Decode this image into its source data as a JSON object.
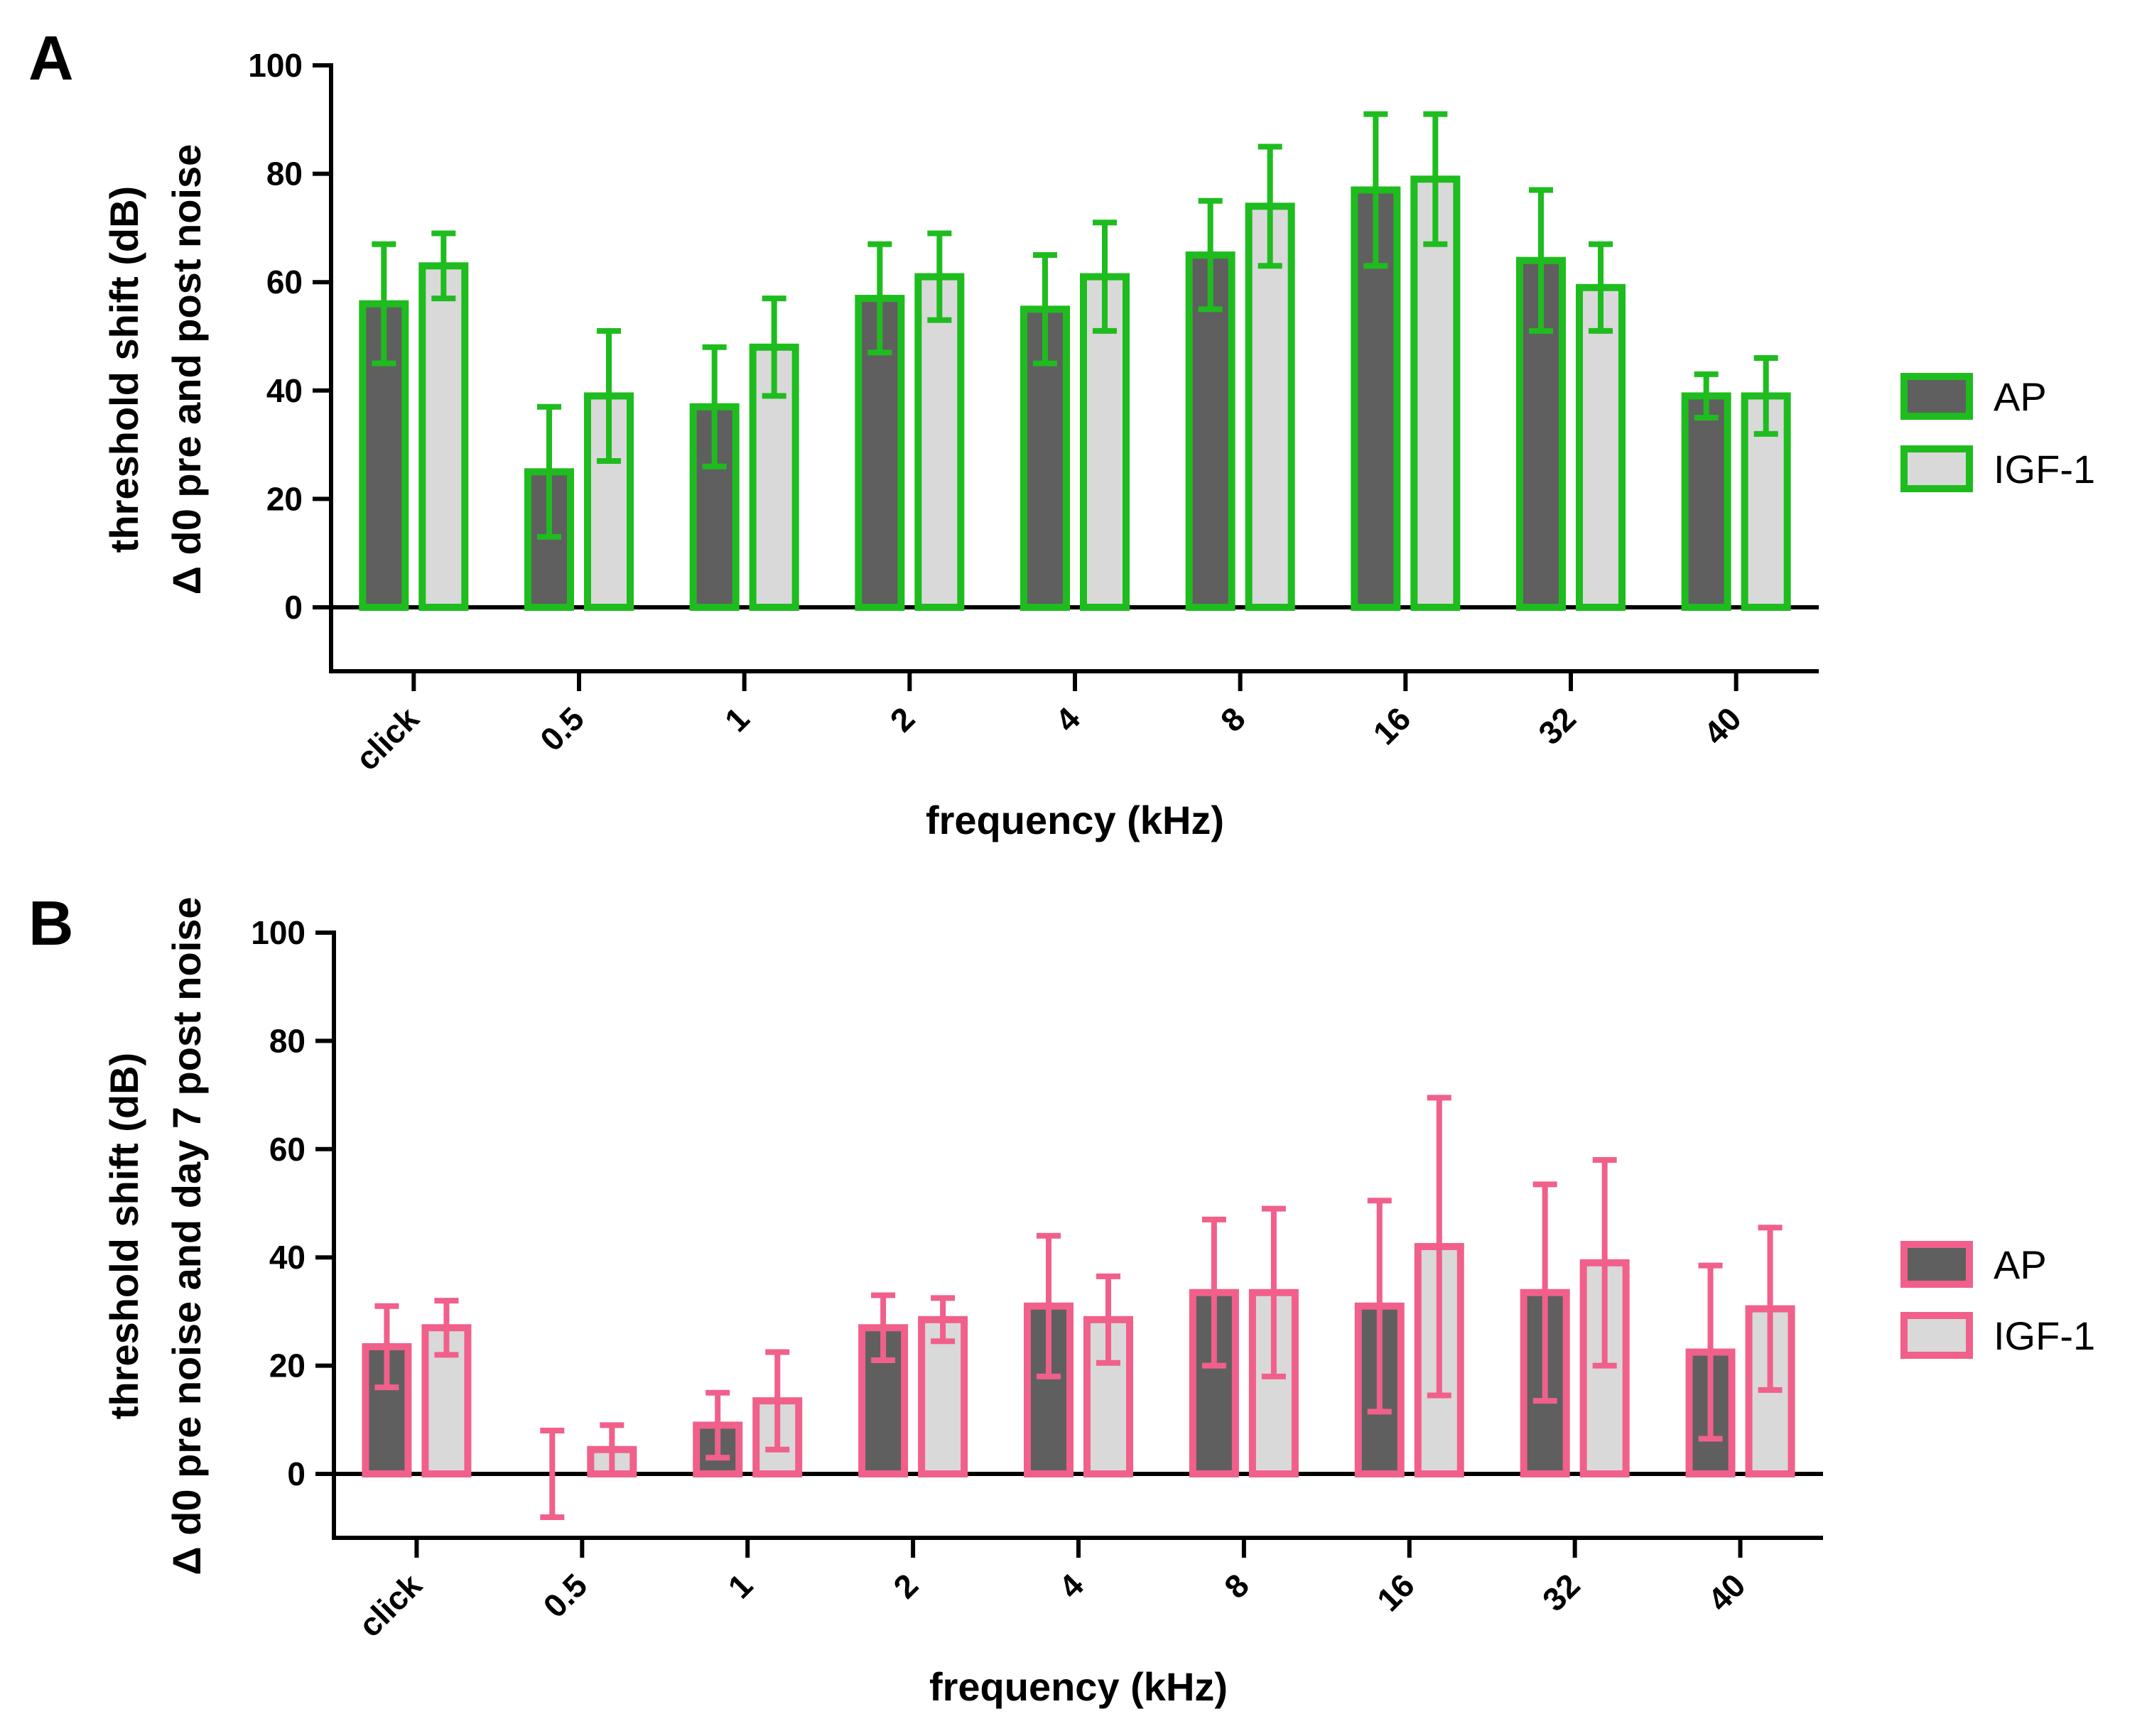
{
  "chart_data": [
    {
      "type": "bar",
      "panel_label": "A",
      "categories": [
        "click",
        "0.5",
        "1",
        "2",
        "4",
        "8",
        "16",
        "32",
        "40"
      ],
      "series": [
        {
          "name": "AP",
          "values": [
            56,
            25,
            37,
            57,
            55,
            65,
            77,
            64,
            39
          ],
          "errors": [
            11,
            12,
            11,
            10,
            10,
            10,
            14,
            13,
            4
          ],
          "fill": "#5f5f5f",
          "stroke": "#1ebc1e"
        },
        {
          "name": "IGF-1",
          "values": [
            63,
            39,
            48,
            61,
            61,
            74,
            79,
            59,
            39
          ],
          "errors": [
            6,
            12,
            9,
            8,
            10,
            11,
            12,
            8,
            7
          ],
          "fill": "#d9d9d9",
          "stroke": "#1ebc1e"
        }
      ],
      "ylabel_lines": [
        "threshold shift (dB)",
        "Δ d0 pre and post noise"
      ],
      "xlabel": "frequency (kHz)",
      "yticks": [
        0,
        20,
        40,
        60,
        80,
        100
      ],
      "ylim": [
        -12,
        100
      ],
      "legend": "right"
    },
    {
      "type": "bar",
      "panel_label": "B",
      "categories": [
        "click",
        "0.5",
        "1",
        "2",
        "4",
        "8",
        "16",
        "32",
        "40"
      ],
      "series": [
        {
          "name": "AP",
          "values": [
            23.5,
            0,
            9,
            27,
            31,
            33.5,
            31,
            33.5,
            22.5
          ],
          "errors": [
            7.5,
            8,
            6,
            6,
            13,
            13.5,
            19.5,
            20,
            16
          ],
          "fill": "#5f5f5f",
          "stroke": "#f0608a"
        },
        {
          "name": "IGF-1",
          "values": [
            27,
            4.5,
            13.5,
            28.5,
            28.5,
            33.5,
            42,
            39,
            30.5
          ],
          "errors": [
            5,
            4.5,
            9,
            4,
            8,
            15.5,
            27.5,
            19,
            15
          ],
          "fill": "#d9d9d9",
          "stroke": "#f0608a"
        }
      ],
      "ylabel_lines": [
        "threshold shift (dB)",
        "Δ d0 pre noise and day 7 post noise"
      ],
      "xlabel": "frequency (kHz)",
      "yticks": [
        0,
        20,
        40,
        60,
        80,
        100
      ],
      "ylim": [
        -12,
        100
      ],
      "legend": "right"
    }
  ]
}
